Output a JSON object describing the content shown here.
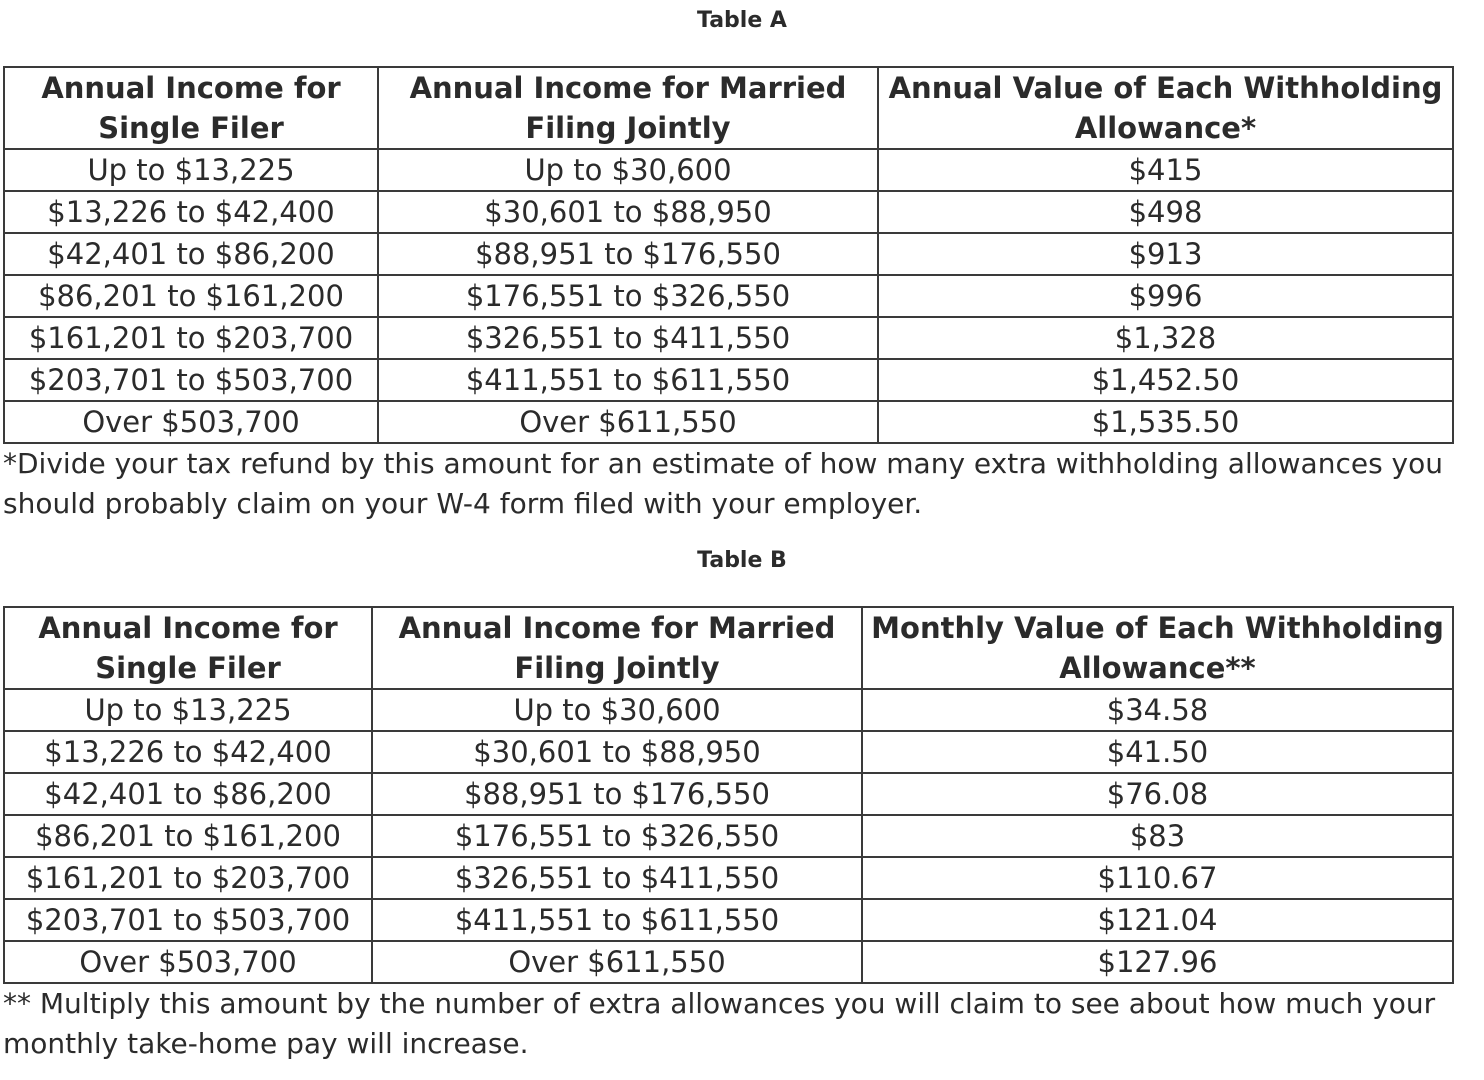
{
  "table_a": {
    "caption": "Table A",
    "headers": [
      "Annual Income for Single Filer",
      "Annual Income for Married Filing Jointly",
      "Annual Value of Each Withholding Allowance*"
    ],
    "rows": [
      [
        "Up to $13,225",
        "Up to $30,600",
        "$415"
      ],
      [
        "$13,226 to $42,400",
        "$30,601 to $88,950",
        "$498"
      ],
      [
        "$42,401 to $86,200",
        "$88,951 to $176,550",
        "$913"
      ],
      [
        "$86,201 to $161,200",
        "$176,551 to $326,550",
        "$996"
      ],
      [
        "$161,201 to $203,700",
        "$326,551 to $411,550",
        "$1,328"
      ],
      [
        "$203,701 to $503,700",
        "$411,551 to $611,550",
        "$1,452.50"
      ],
      [
        "Over $503,700",
        "Over $611,550",
        "$1,535.50"
      ]
    ],
    "footnote": "*Divide your tax refund by this amount for an estimate of how many extra withholding allowances you should probably claim on your W-4 form filed with your employer."
  },
  "table_b": {
    "caption": "Table B",
    "headers": [
      "Annual Income for Single Filer",
      "Annual Income for Married Filing Jointly",
      "Monthly Value of Each Withholding Allowance**"
    ],
    "rows": [
      [
        "Up to $13,225",
        "Up to $30,600",
        "$34.58"
      ],
      [
        "$13,226 to $42,400",
        "$30,601 to $88,950",
        "$41.50"
      ],
      [
        "$42,401 to $86,200",
        "$88,951 to $176,550",
        "$76.08"
      ],
      [
        "$86,201 to $161,200",
        "$176,551 to $326,550",
        "$83"
      ],
      [
        "$161,201 to $203,700",
        "$326,551 to $411,550",
        "$110.67"
      ],
      [
        "$203,701 to $503,700",
        "$411,551 to $611,550",
        "$121.04"
      ],
      [
        "Over $503,700",
        "Over $611,550",
        "$127.96"
      ]
    ],
    "footnote": "** Multiply this amount by the number of extra allowances you will claim to see about how much your monthly take-home pay will increase."
  }
}
